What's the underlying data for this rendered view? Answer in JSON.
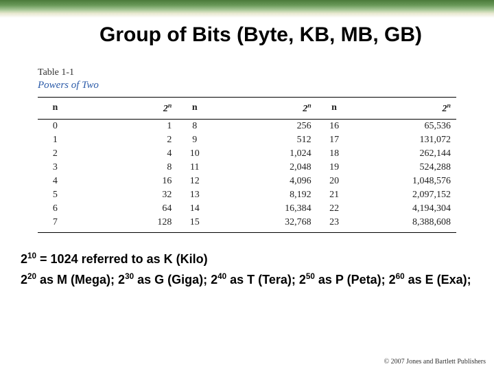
{
  "colors": {
    "background": "#ffffff",
    "title_text": "#000000",
    "caption_text": "#2a5aa8",
    "banner_gradient": [
      "#4a7a3a",
      "#6a9a5a",
      "#a8c898",
      "#e8e8d0",
      "#ffffff"
    ]
  },
  "title": "Group of Bits (Byte, KB, MB, GB)",
  "table": {
    "label": "Table 1-1",
    "caption": "Powers of Two",
    "headers": {
      "n": "n",
      "val": "2ⁿ"
    },
    "rows": [
      {
        "n1": "0",
        "v1": "1",
        "n2": "8",
        "v2": "256",
        "n3": "16",
        "v3": "65,536"
      },
      {
        "n1": "1",
        "v1": "2",
        "n2": "9",
        "v2": "512",
        "n3": "17",
        "v3": "131,072"
      },
      {
        "n1": "2",
        "v1": "4",
        "n2": "10",
        "v2": "1,024",
        "n3": "18",
        "v3": "262,144"
      },
      {
        "n1": "3",
        "v1": "8",
        "n2": "11",
        "v2": "2,048",
        "n3": "19",
        "v3": "524,288"
      },
      {
        "n1": "4",
        "v1": "16",
        "n2": "12",
        "v2": "4,096",
        "n3": "20",
        "v3": "1,048,576"
      },
      {
        "n1": "5",
        "v1": "32",
        "n2": "13",
        "v2": "8,192",
        "n3": "21",
        "v3": "2,097,152"
      },
      {
        "n1": "6",
        "v1": "64",
        "n2": "14",
        "v2": "16,384",
        "n3": "22",
        "v3": "4,194,304"
      },
      {
        "n1": "7",
        "v1": "128",
        "n2": "15",
        "v2": "32,768",
        "n3": "23",
        "v3": "8,388,608"
      }
    ]
  },
  "notes": {
    "line1_base": "2",
    "line1_exp": "10",
    "line1_rest": " = 1024 referred to as K (Kilo)",
    "line2_parts": [
      {
        "base": "2",
        "exp": "20",
        "txt": " as M (Mega); "
      },
      {
        "base": "2",
        "exp": "30",
        "txt": " as G (Giga); "
      },
      {
        "base": "2",
        "exp": "40",
        "txt": " as T (Tera); "
      },
      {
        "base": "2",
        "exp": "50",
        "txt": " as P (Peta); "
      },
      {
        "base": "2",
        "exp": "60",
        "txt": " as E (Exa);"
      }
    ]
  },
  "footer": "© 2007 Jones and Bartlett Publishers"
}
